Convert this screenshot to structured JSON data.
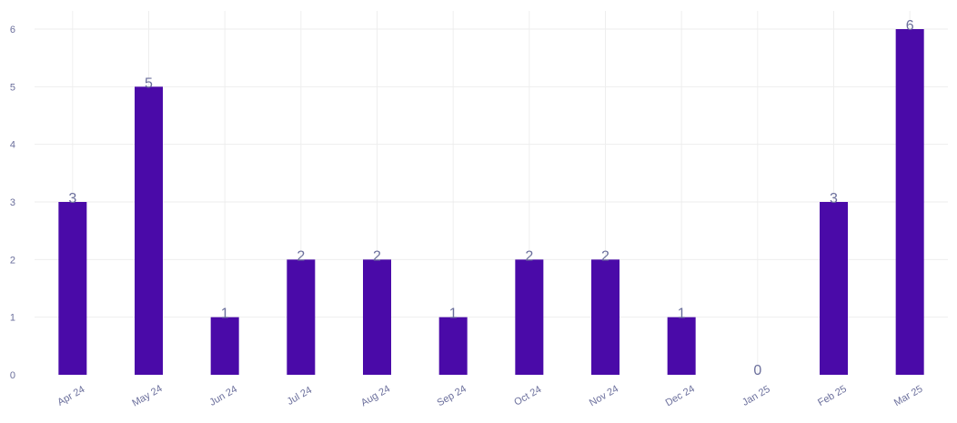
{
  "chart_data": {
    "type": "bar",
    "title": "",
    "xlabel": "",
    "ylabel": "",
    "categories": [
      "Apr 24",
      "May 24",
      "Jun 24",
      "Jul 24",
      "Aug 24",
      "Sep 24",
      "Oct 24",
      "Nov 24",
      "Dec 24",
      "Jan 25",
      "Feb 25",
      "Mar 25"
    ],
    "values": [
      3,
      5,
      1,
      2,
      2,
      1,
      2,
      2,
      1,
      0,
      3,
      6
    ],
    "ylim": [
      0,
      6
    ],
    "yticks": [
      "0",
      "1",
      "2",
      "3",
      "4",
      "5",
      "6"
    ],
    "grid": true,
    "data_labels": true,
    "legend": "none",
    "colors": {
      "bar": "#4a0aa8",
      "grid": "#eeeeee",
      "text": "#6b6f9c"
    }
  }
}
